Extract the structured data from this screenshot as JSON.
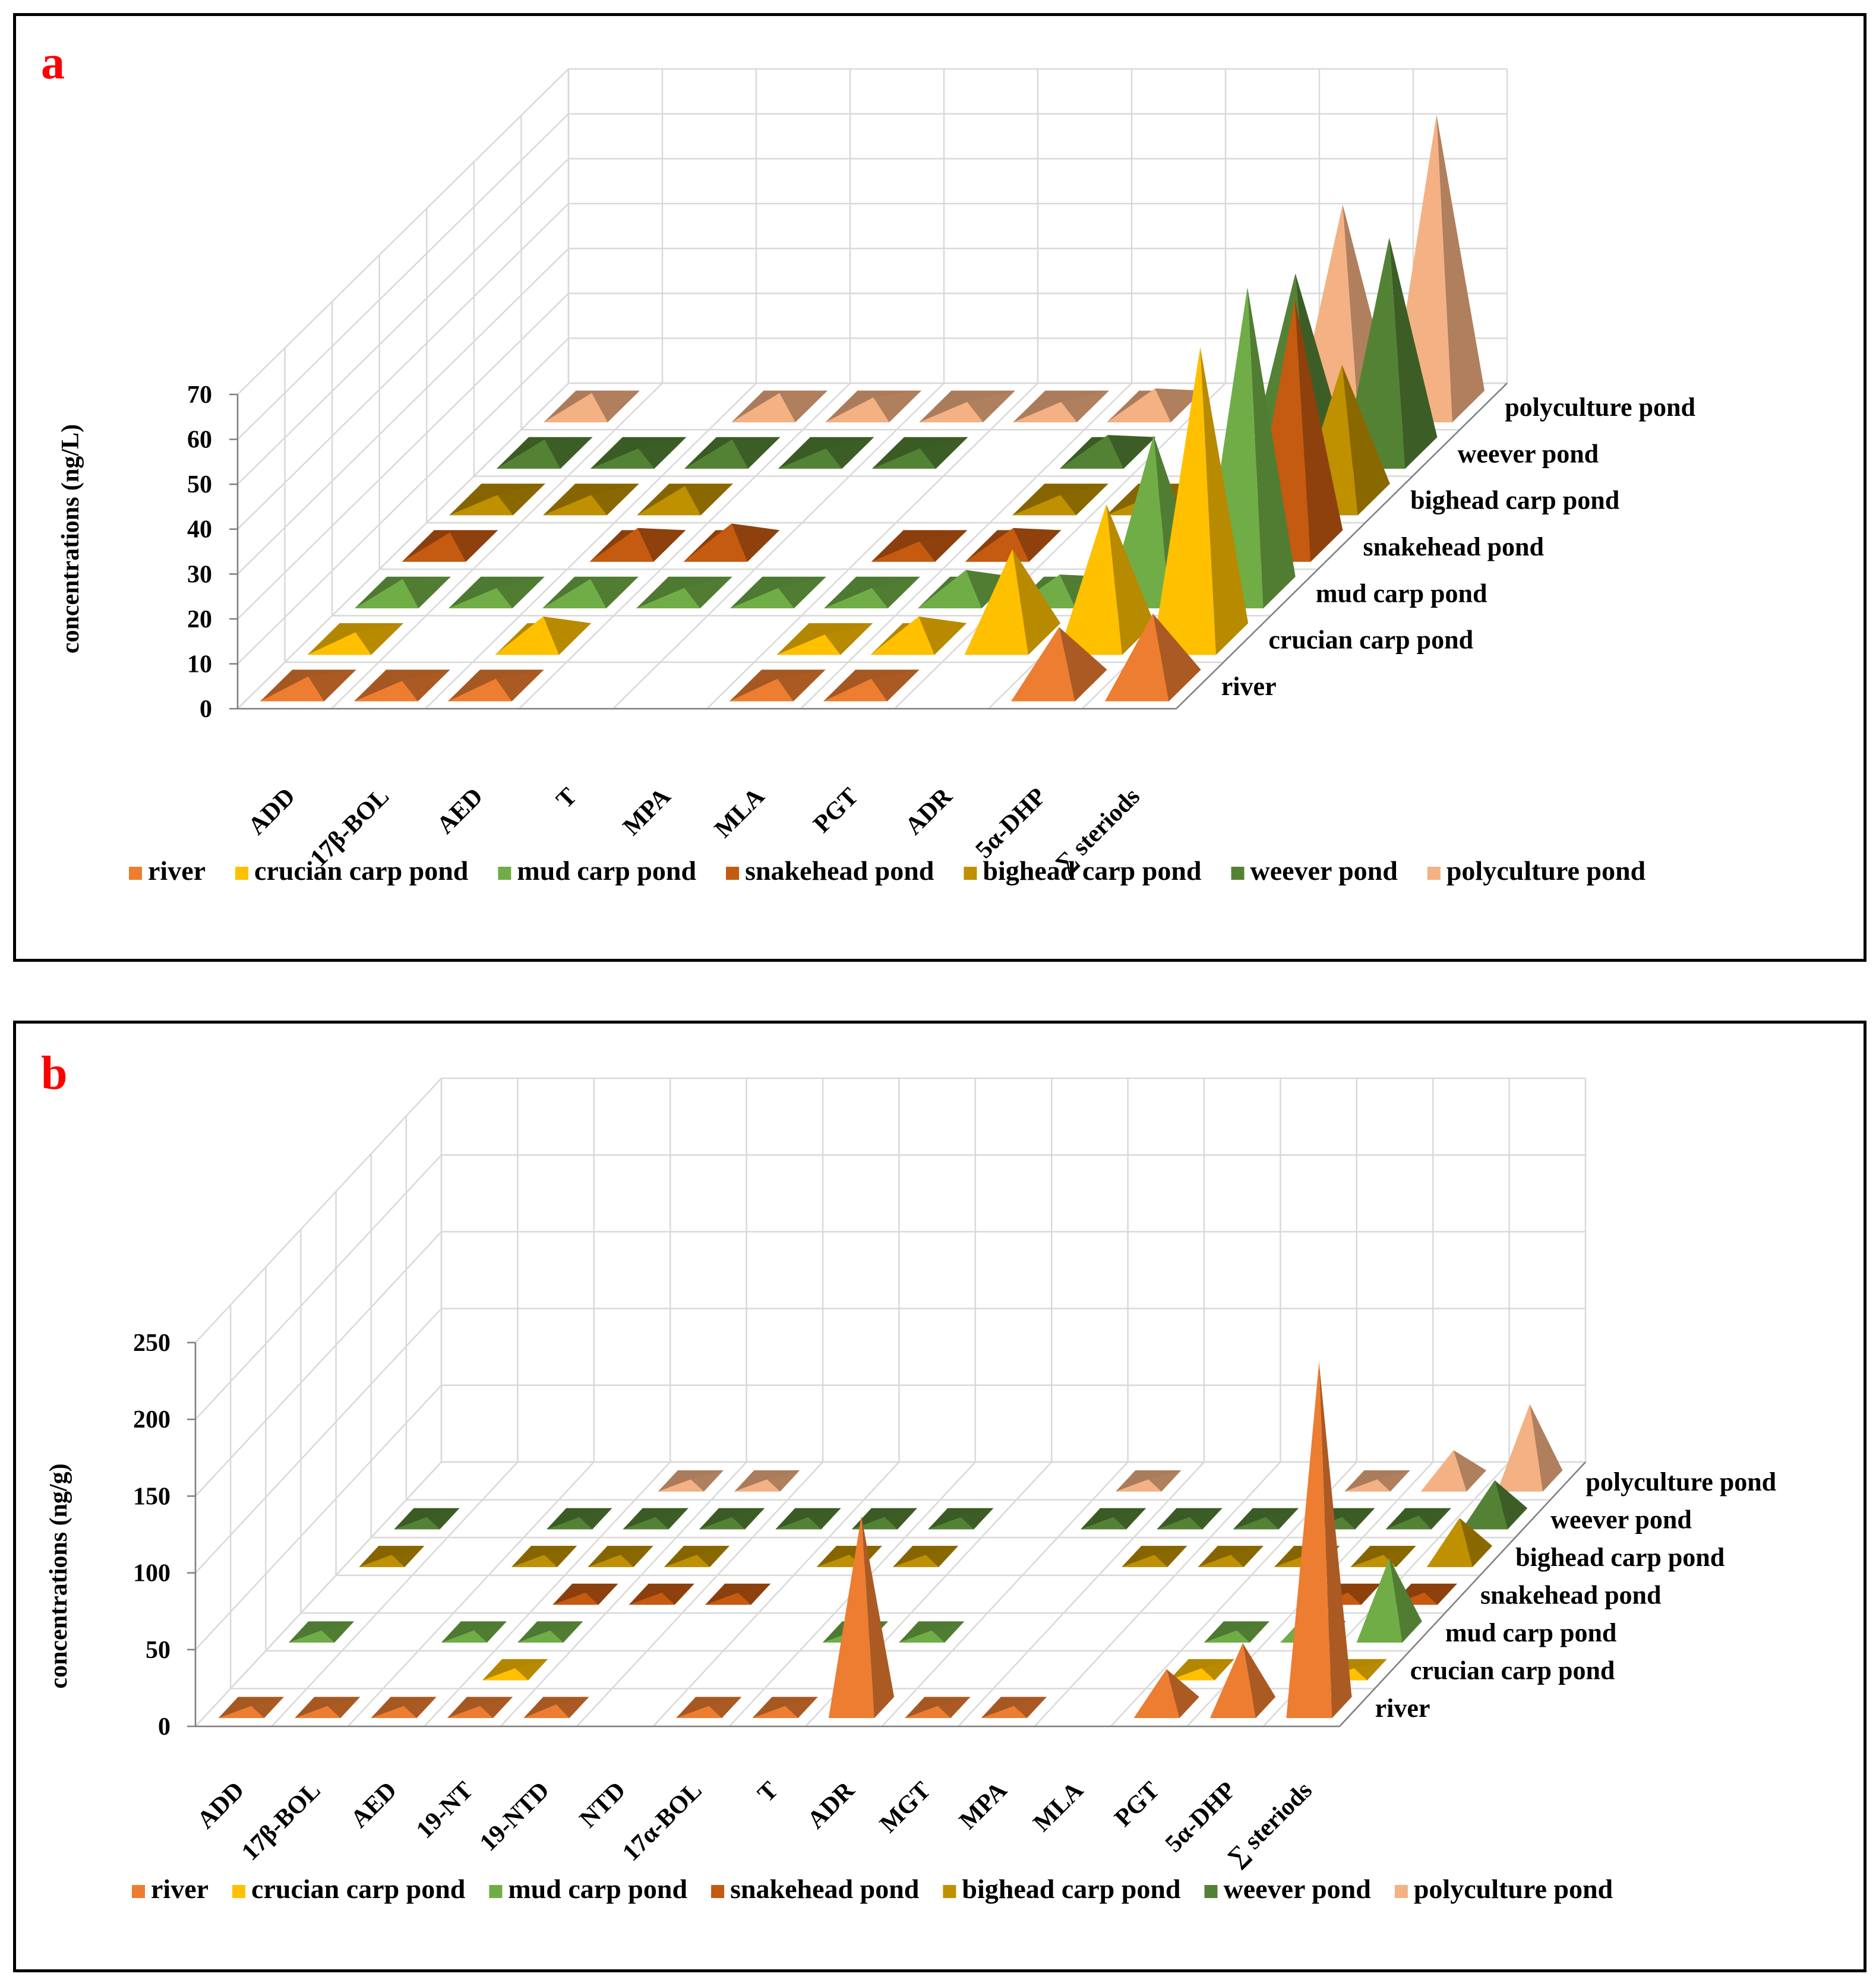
{
  "colors": {
    "river": "#ed7d31",
    "crucian carp pond": "#ffc000",
    "mud carp pond": "#70ad47",
    "snakehead pond": "#c55a11",
    "bighead carp pond": "#bf9000",
    "weever pond": "#548235",
    "polyculture pond": "#f4b183"
  },
  "chart_data": [
    {
      "type": "bar",
      "shape": "3d-pyramid",
      "panel_label": "a",
      "title": "",
      "ylabel": "concentrations (ng/L)",
      "xlabel": "",
      "ylim": [
        0,
        70
      ],
      "yticks": [
        "0",
        "10",
        "20",
        "30",
        "40",
        "50",
        "60",
        "70"
      ],
      "categories": [
        "ADD",
        "17β-BOL",
        "AED",
        "T",
        "MPA",
        "MLA",
        "PGT",
        "ADR",
        "5α-DHP",
        "∑ steriods"
      ],
      "series": [
        {
          "name": "river",
          "values": [
            2,
            1,
            1.5,
            0,
            0,
            1.5,
            1.5,
            0,
            13,
            16
          ]
        },
        {
          "name": "crucian carp pond",
          "values": [
            1.5,
            0,
            5,
            0,
            0,
            1,
            5,
            20,
            30,
            65
          ]
        },
        {
          "name": "mud carp pond",
          "values": [
            3,
            1,
            3,
            1,
            1,
            1,
            5,
            4,
            35,
            68
          ]
        },
        {
          "name": "snakehead pond",
          "values": [
            3,
            0,
            4,
            5,
            0,
            1,
            4,
            0,
            18,
            55
          ]
        },
        {
          "name": "bighead carp pond",
          "values": [
            1,
            1,
            3,
            0,
            0,
            0,
            1,
            1,
            0,
            30
          ]
        },
        {
          "name": "weever pond",
          "values": [
            3,
            1,
            3,
            1,
            1,
            0,
            4,
            0,
            40,
            48
          ]
        },
        {
          "name": "polyculture pond",
          "values": [
            3,
            0,
            3,
            2,
            1,
            1,
            4,
            0,
            45,
            65
          ]
        }
      ],
      "legend": [
        "river",
        "crucian carp pond",
        "mud carp pond",
        "snakehead pond",
        "bighead carp pond",
        "weever pond",
        "polyculture pond"
      ],
      "legend_position": "bottom",
      "grid": true
    },
    {
      "type": "bar",
      "shape": "3d-pyramid",
      "panel_label": "b",
      "title": "",
      "ylabel": "concentrations (ng/g)",
      "xlabel": "",
      "ylim": [
        0,
        250
      ],
      "yticks": [
        "0",
        "50",
        "100",
        "150",
        "200",
        "250"
      ],
      "categories": [
        "ADD",
        "17β-BOL",
        "AED",
        "19-NT",
        "19-NTD",
        "NTD",
        "17α-BOL",
        "T",
        "ADR",
        "MGT",
        "MPA",
        "MLA",
        "PGT",
        "5α-DHP",
        "∑ steriods"
      ],
      "series": [
        {
          "name": "river",
          "values": [
            1,
            1,
            1,
            1,
            2,
            0,
            1,
            1,
            125,
            1,
            1,
            0,
            25,
            42,
            225
          ]
        },
        {
          "name": "crucian carp pond",
          "values": [
            0,
            0,
            0,
            1,
            0,
            0,
            0,
            0,
            0,
            0,
            0,
            0,
            1,
            0,
            1
          ]
        },
        {
          "name": "mud carp pond",
          "values": [
            1,
            0,
            1,
            1,
            0,
            0,
            0,
            1,
            1,
            0,
            0,
            0,
            1,
            15,
            48
          ]
        },
        {
          "name": "snakehead pond",
          "values": [
            0,
            0,
            0,
            1,
            1,
            1,
            0,
            0,
            0,
            0,
            0,
            0,
            0,
            1,
            1
          ]
        },
        {
          "name": "bighead carp pond",
          "values": [
            1,
            0,
            1,
            1,
            1,
            0,
            1,
            1,
            0,
            0,
            1,
            1,
            1,
            1,
            25
          ]
        },
        {
          "name": "weever pond",
          "values": [
            1,
            0,
            1,
            1,
            1,
            1,
            1,
            1,
            0,
            1,
            1,
            1,
            1,
            2,
            25
          ]
        },
        {
          "name": "polyculture pond",
          "values": [
            0,
            0,
            0,
            1,
            1,
            0,
            0,
            0,
            0,
            1,
            0,
            0,
            1,
            20,
            50
          ]
        }
      ],
      "legend": [
        "river",
        "crucian carp pond",
        "mud carp pond",
        "snakehead pond",
        "bighead carp pond",
        "weever pond",
        "polyculture pond"
      ],
      "legend_position": "bottom",
      "grid": true
    }
  ]
}
